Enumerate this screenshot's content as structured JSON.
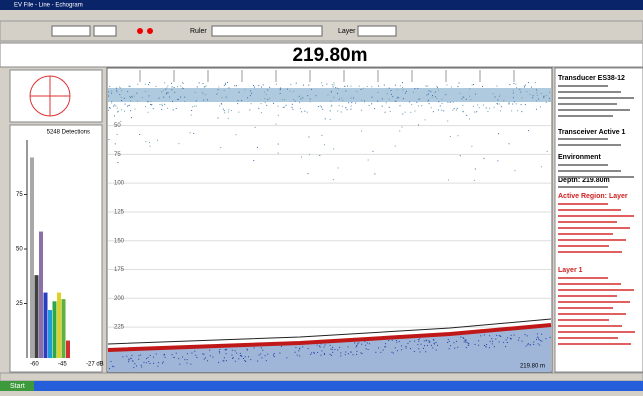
{
  "window": {
    "title": "EV File - Line - Echogram"
  },
  "toolbar": {
    "ruler": "Ruler",
    "layer": "Layer"
  },
  "depth_display": "219.80m",
  "histogram": {
    "title": "5248 Detections",
    "ylim": [
      0,
      100
    ],
    "yticks": [
      25,
      50,
      75
    ],
    "values": [
      92,
      38,
      58,
      30,
      22,
      26,
      30,
      27,
      8
    ],
    "colors": [
      "#a8a8a8",
      "#404040",
      "#8a6fa8",
      "#2a3fc0",
      "#1f9bd8",
      "#2aa84a",
      "#e0d020",
      "#5fb040",
      "#d03030"
    ],
    "xticks": [
      "-60",
      "-45",
      "-27 dB"
    ]
  },
  "echogram": {
    "ylim": [
      0,
      264
    ],
    "depth_ticks": [
      50,
      75,
      100,
      125,
      150,
      175,
      200,
      225
    ],
    "corner_label": "219.80 m"
  },
  "info": {
    "transducer": "Transducer ES38-12",
    "transceiver": "Transceiver Active 1",
    "environment": "Environment",
    "depth": "Depth: 219.80m",
    "region": "Active Region: Layer",
    "layer": "Layer 1"
  },
  "taskbar": {
    "start": "Start"
  }
}
